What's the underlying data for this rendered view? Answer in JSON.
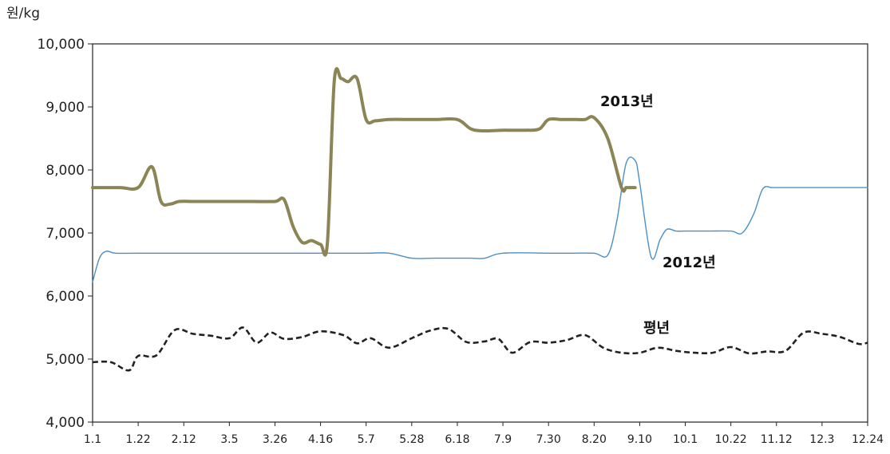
{
  "chart_data": {
    "type": "line",
    "ylabel": "원/kg",
    "xlabel": "",
    "title": "",
    "ylim": [
      4000,
      10000
    ],
    "y_ticks": [
      "4,000",
      "5,000",
      "6,000",
      "7,000",
      "8,000",
      "9,000",
      "10,000"
    ],
    "y_tick_values": [
      4000,
      5000,
      6000,
      7000,
      8000,
      9000,
      10000
    ],
    "categories": [
      "1.1",
      "1.22",
      "2.12",
      "3.5",
      "3.26",
      "4.16",
      "5.7",
      "5.28",
      "6.18",
      "7.9",
      "7.30",
      "8.20",
      "9.10",
      "10.1",
      "10.22",
      "11.12",
      "12.3",
      "12.24"
    ],
    "grid": false,
    "colors": {
      "s2013": "#8b8455",
      "s2012": "#4a90c8",
      "avg": "#222222",
      "axis": "#222222"
    },
    "series": [
      {
        "name": "2013년",
        "style": "thick",
        "x": [
          0,
          0.6,
          1.0,
          1.3,
          1.5,
          1.7,
          1.9,
          2.2,
          2.6,
          3,
          3.5,
          4,
          4.2,
          4.4,
          4.6,
          4.8,
          5.0,
          5.15,
          5.3,
          5.45,
          5.6,
          5.8,
          6.0,
          6.2,
          6.5,
          7,
          7.5,
          8,
          8.3,
          8.6,
          9,
          9.5,
          9.8,
          10,
          10.3,
          10.6,
          10.8,
          11,
          11.3,
          11.6,
          11.7,
          11.8,
          11.9
        ],
        "y": [
          7720,
          7720,
          7720,
          8050,
          7500,
          7460,
          7500,
          7500,
          7500,
          7500,
          7500,
          7500,
          7530,
          7100,
          6850,
          6880,
          6820,
          6850,
          9400,
          9450,
          9400,
          9450,
          8800,
          8780,
          8800,
          8800,
          8800,
          8800,
          8650,
          8620,
          8630,
          8630,
          8650,
          8800,
          8800,
          8800,
          8800,
          8830,
          8500,
          7720,
          7720,
          7720,
          7720
        ]
      },
      {
        "name": "2012년",
        "style": "thin",
        "x": [
          0,
          0.15,
          0.3,
          0.5,
          1,
          2,
          3,
          4,
          5,
          6,
          6.5,
          7,
          7.5,
          8,
          8.3,
          8.6,
          9,
          10,
          10.5,
          11,
          11.3,
          11.5,
          11.7,
          11.9,
          12,
          12.25,
          12.45,
          12.6,
          12.8,
          13,
          13.5,
          14,
          14.25,
          14.5,
          14.7,
          14.9,
          15,
          15.5,
          16,
          16.5,
          17
        ],
        "y": [
          6220,
          6600,
          6710,
          6680,
          6680,
          6680,
          6680,
          6680,
          6680,
          6680,
          6680,
          6600,
          6600,
          6600,
          6600,
          6600,
          6680,
          6680,
          6680,
          6680,
          6650,
          7200,
          8100,
          8150,
          7800,
          6620,
          6900,
          7060,
          7030,
          7030,
          7030,
          7030,
          7000,
          7300,
          7700,
          7720,
          7720,
          7720,
          7720,
          7720,
          7720
        ]
      },
      {
        "name": "평년",
        "style": "dashed",
        "x": [
          0,
          0.4,
          0.8,
          1,
          1.4,
          1.8,
          2.2,
          2.6,
          3,
          3.3,
          3.6,
          3.9,
          4.2,
          4.6,
          5,
          5.5,
          5.8,
          6.1,
          6.5,
          7,
          7.4,
          7.8,
          8.2,
          8.6,
          8.9,
          9.2,
          9.6,
          10,
          10.4,
          10.8,
          11.2,
          11.6,
          12,
          12.4,
          12.8,
          13.2,
          13.6,
          14,
          14.4,
          14.8,
          15.2,
          15.6,
          16,
          16.4,
          16.8,
          17
        ],
        "y": [
          4950,
          4950,
          4820,
          5050,
          5060,
          5460,
          5400,
          5370,
          5330,
          5500,
          5260,
          5420,
          5320,
          5350,
          5440,
          5380,
          5250,
          5330,
          5180,
          5330,
          5450,
          5480,
          5270,
          5280,
          5320,
          5100,
          5270,
          5260,
          5300,
          5380,
          5180,
          5100,
          5100,
          5180,
          5130,
          5100,
          5100,
          5190,
          5090,
          5120,
          5130,
          5420,
          5400,
          5350,
          5240,
          5260
        ]
      }
    ],
    "annotations": [
      {
        "text": "2013년",
        "series": "2013년"
      },
      {
        "text": "2012년",
        "series": "2012년"
      },
      {
        "text": "평년",
        "series": "평년"
      }
    ]
  }
}
